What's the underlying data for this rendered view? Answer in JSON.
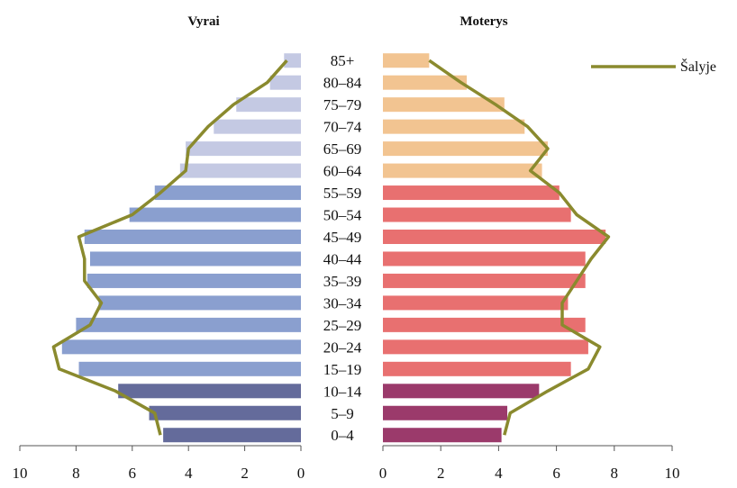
{
  "chart_data": {
    "type": "bar",
    "subtype": "population-pyramid",
    "categories": [
      "0–4",
      "5–9",
      "10–14",
      "15–19",
      "20–24",
      "25–29",
      "30–34",
      "35–39",
      "40–44",
      "45–49",
      "50–54",
      "55–59",
      "60–64",
      "65–69",
      "70–74",
      "75–79",
      "80–84",
      "85+"
    ],
    "panels": [
      {
        "title": "Vyrai",
        "values": [
          4.9,
          5.4,
          6.5,
          7.9,
          8.5,
          8.0,
          7.2,
          7.6,
          7.5,
          7.7,
          6.1,
          5.2,
          4.3,
          4.1,
          3.1,
          2.3,
          1.1,
          0.6
        ],
        "colors": {
          "0-14": "#646b9b",
          "15-59": "#8a9fcf",
          "60+": "#c4c9e3"
        },
        "xlim": [
          10,
          0
        ],
        "ticks": [
          "10",
          "8",
          "6",
          "4",
          "2",
          "0"
        ]
      },
      {
        "title": "Moterys",
        "values": [
          4.1,
          4.3,
          5.4,
          6.5,
          7.1,
          7.0,
          6.4,
          7.0,
          7.0,
          7.7,
          6.5,
          6.1,
          5.5,
          5.7,
          4.9,
          4.2,
          2.9,
          1.6
        ],
        "colors": {
          "0-14": "#9b3a6b",
          "15-59": "#e87070",
          "60+": "#f2c491"
        },
        "xlim": [
          0,
          10
        ],
        "ticks": [
          "0",
          "2",
          "4",
          "6",
          "8",
          "10"
        ]
      }
    ],
    "series": [
      {
        "name": "Šalyje",
        "color": "#8a8a2e",
        "male": [
          5.0,
          5.2,
          6.6,
          8.6,
          8.8,
          7.5,
          7.1,
          7.7,
          7.7,
          7.9,
          6.0,
          5.0,
          4.1,
          4.0,
          3.3,
          2.4,
          1.2,
          0.5
        ],
        "female": [
          4.2,
          4.4,
          5.7,
          7.1,
          7.5,
          6.2,
          6.2,
          6.7,
          7.2,
          7.8,
          6.7,
          6.1,
          5.1,
          5.7,
          5.0,
          3.9,
          2.7,
          1.6
        ]
      }
    ],
    "legend": {
      "position": "top-right"
    },
    "grid": false
  }
}
